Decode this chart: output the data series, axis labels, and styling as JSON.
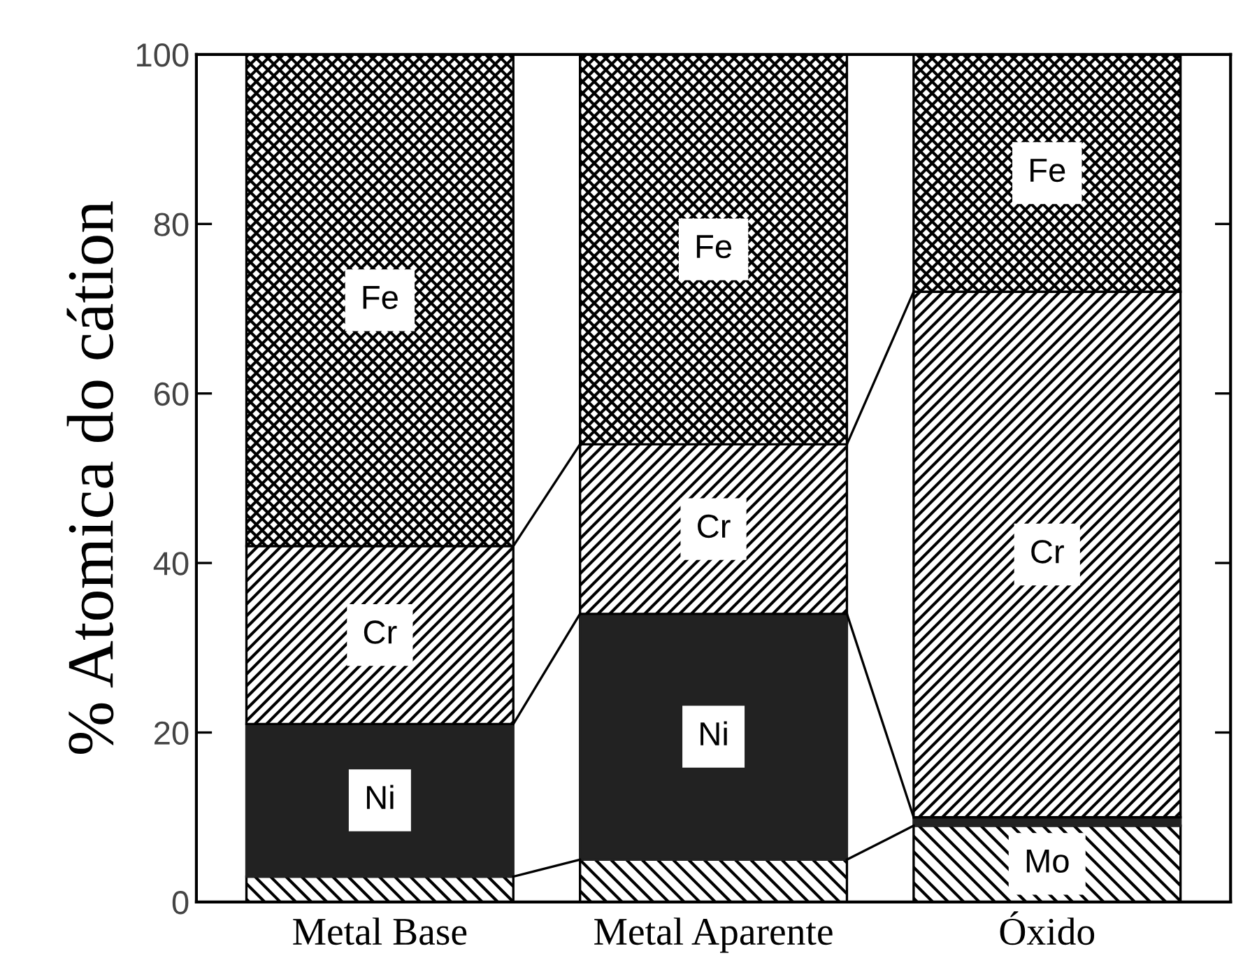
{
  "chart_data": {
    "type": "bar",
    "stacked": true,
    "ylabel": "% Atomica do cátion",
    "categories": [
      "Metal Base",
      "Metal Aparente",
      "Óxido"
    ],
    "series": [
      {
        "name": "Mo",
        "color": "#000000",
        "values": [
          3,
          5,
          9
        ]
      },
      {
        "name": "Ni",
        "color": "#222222",
        "values": [
          18,
          29,
          1
        ]
      },
      {
        "name": "Cr",
        "color": "#000000",
        "values": [
          21,
          20,
          62
        ]
      },
      {
        "name": "Fe",
        "color": "#000000",
        "values": [
          58,
          46,
          28
        ]
      }
    ],
    "ylim": [
      0,
      100
    ],
    "yticks": [
      0,
      20,
      40,
      60,
      80,
      100
    ],
    "grid": false,
    "legend": false
  }
}
